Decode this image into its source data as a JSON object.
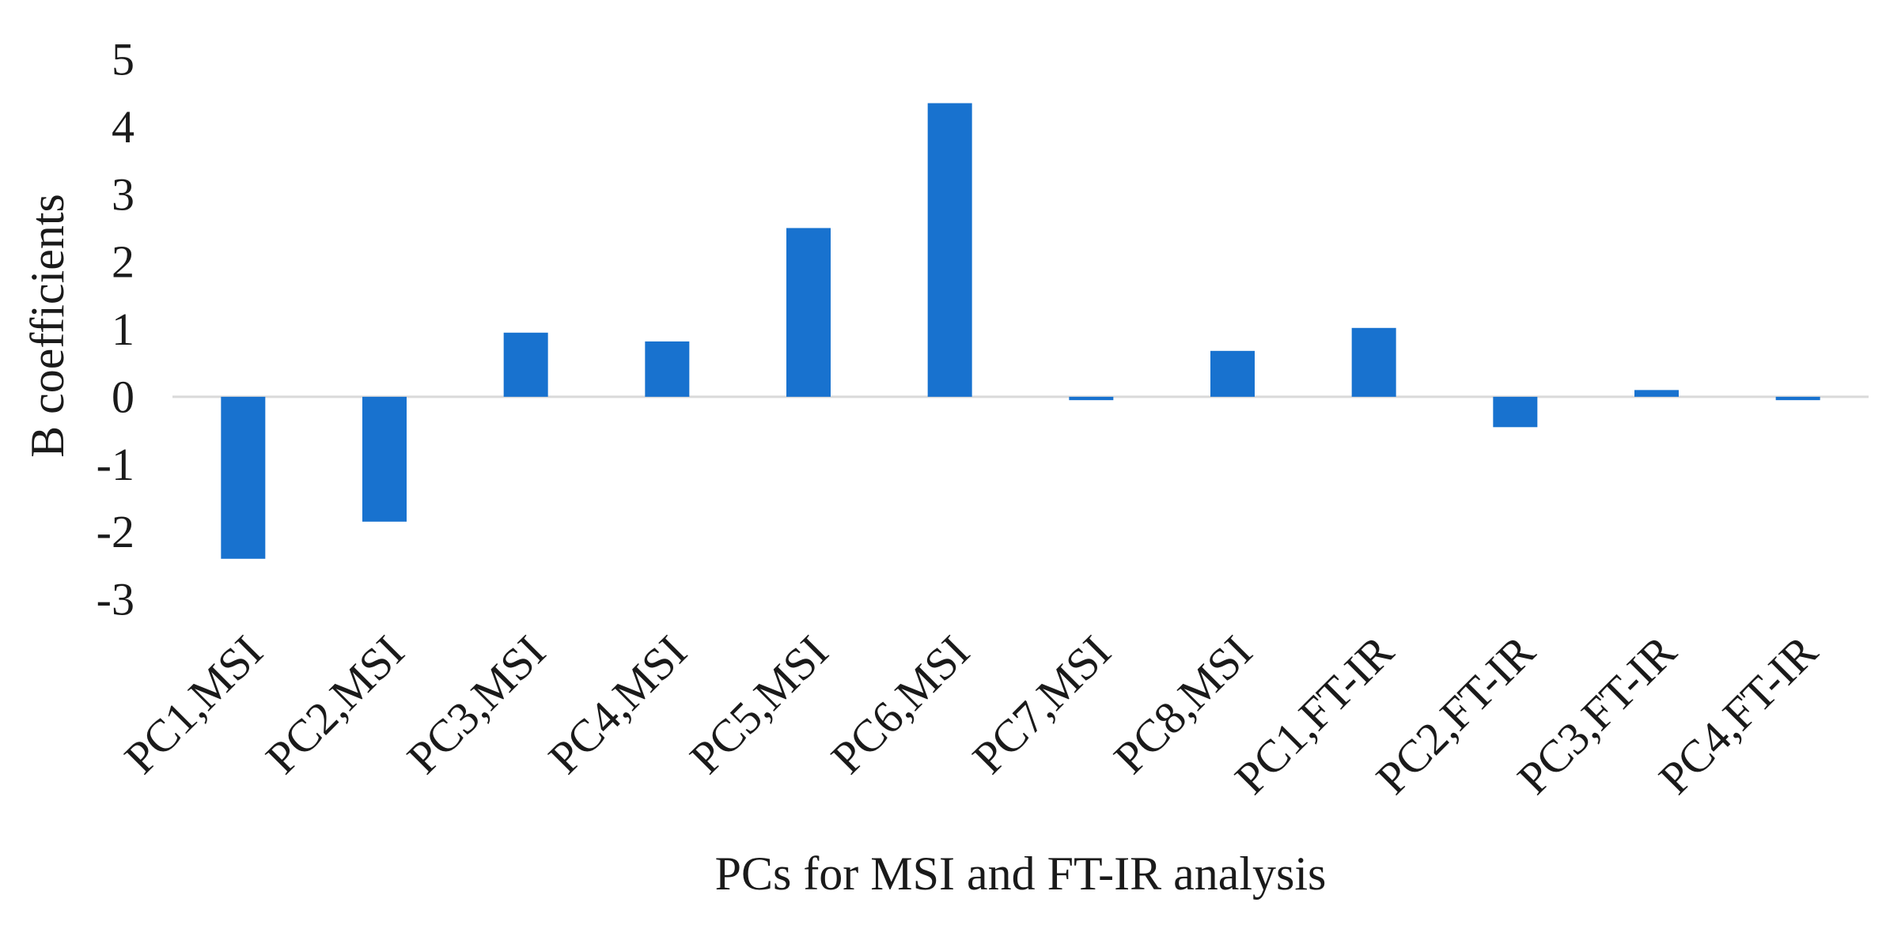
{
  "chart_data": {
    "type": "bar",
    "title": "",
    "xlabel": "PCs for MSI and FT-IR analysis",
    "ylabel": "B coefficients",
    "ylim": [
      -3,
      5
    ],
    "yticks": [
      -3,
      -2,
      -1,
      0,
      1,
      2,
      3,
      4,
      5
    ],
    "grid": false,
    "legend": "none",
    "bar_color": "#1872CF",
    "zero_line_color": "#D9D9D9",
    "categories": [
      "PC1,MSI",
      "PC2,MSI",
      "PC3,MSI",
      "PC4,MSI",
      "PC5,MSI",
      "PC6,MSI",
      "PC7,MSI",
      "PC8,MSI",
      "PC1,FT-IR",
      "PC2,FT-IR",
      "PC3,FT-IR",
      "PC4,FT-IR"
    ],
    "values": [
      -2.4,
      -1.85,
      0.95,
      0.82,
      2.5,
      4.35,
      -0.05,
      0.68,
      1.02,
      -0.45,
      0.1,
      -0.05
    ]
  }
}
